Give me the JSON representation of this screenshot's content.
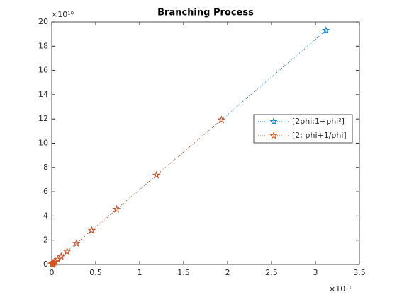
{
  "chart_data": {
    "type": "line",
    "title": "Branching Process",
    "x_multiplier": "×10¹¹",
    "y_multiplier": "×10¹⁰",
    "xlim": [
      0,
      3.5
    ],
    "ylim": [
      0,
      20
    ],
    "xticks": [
      0,
      0.5,
      1,
      1.5,
      2,
      2.5,
      3,
      3.5
    ],
    "yticks": [
      0,
      2,
      4,
      6,
      8,
      10,
      12,
      14,
      16,
      18,
      20
    ],
    "legend": "right",
    "series": [
      {
        "name": "[2phi;1+phi²]",
        "color": "#0072bd",
        "x": [
          0.0023,
          0.0037,
          0.006,
          0.0097,
          0.0157,
          0.0254,
          0.041,
          0.0664,
          0.107,
          0.174,
          0.281,
          0.455,
          0.737,
          1.19,
          1.93,
          3.12
        ],
        "values": [
          0.0142,
          0.0229,
          0.0371,
          0.06,
          0.097,
          0.157,
          0.253,
          0.41,
          0.661,
          1.075,
          1.737,
          2.81,
          4.55,
          7.36,
          11.93,
          19.3
        ]
      },
      {
        "name": "[2; phi+1/phi]",
        "color": "#d95319",
        "x": [
          0.0023,
          0.0037,
          0.006,
          0.0097,
          0.0157,
          0.0254,
          0.041,
          0.0664,
          0.107,
          0.174,
          0.281,
          0.455,
          0.737,
          1.19,
          1.93
        ],
        "values": [
          0.0142,
          0.0229,
          0.0371,
          0.06,
          0.097,
          0.157,
          0.253,
          0.41,
          0.661,
          1.075,
          1.737,
          2.81,
          4.55,
          7.36,
          11.93
        ]
      }
    ]
  }
}
